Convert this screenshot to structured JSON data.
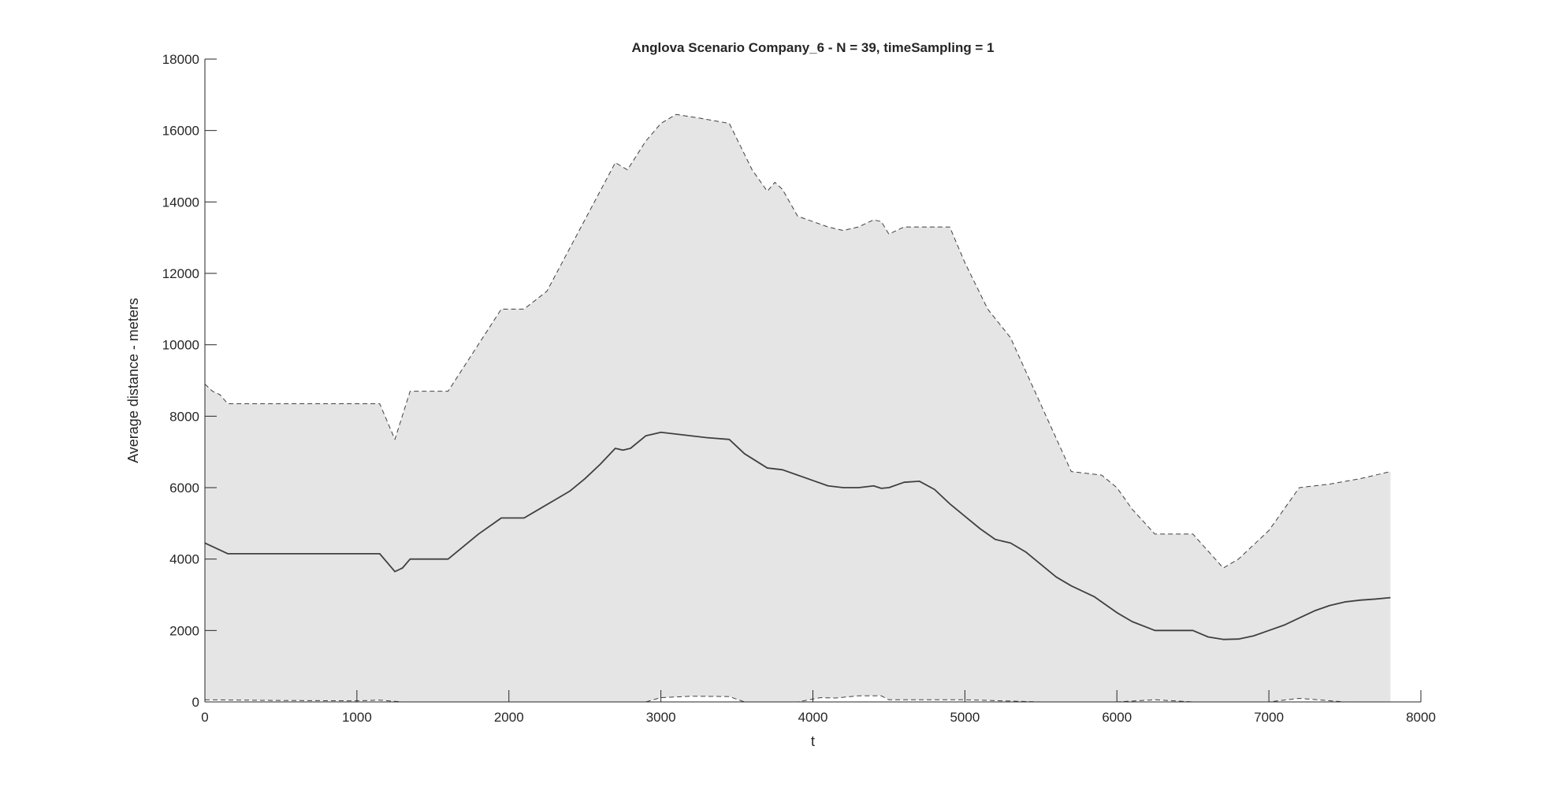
{
  "chart_data": {
    "type": "area",
    "title": "Anglova Scenario Company_6 - N = 39, timeSampling = 1",
    "xlabel": "t",
    "ylabel": "Average distance - meters",
    "xlim": [
      0,
      8000
    ],
    "ylim": [
      0,
      18000
    ],
    "xticks": [
      0,
      1000,
      2000,
      3000,
      4000,
      5000,
      6000,
      7000,
      8000
    ],
    "yticks": [
      0,
      2000,
      4000,
      6000,
      8000,
      10000,
      12000,
      14000,
      16000,
      18000
    ],
    "grid": false,
    "colors": {
      "fill": "#e5e5e5",
      "line": "#404040",
      "bound": "#404040",
      "axis": "#262626"
    },
    "series": [
      {
        "role": "upper-bound",
        "style": "dashed",
        "x": [
          0,
          50,
          100,
          150,
          1100,
          1150,
          1250,
          1350,
          1600,
          1950,
          2100,
          2250,
          2700,
          2780,
          2900,
          3000,
          3100,
          3250,
          3450,
          3600,
          3700,
          3750,
          3800,
          3900,
          4000,
          4100,
          4200,
          4300,
          4400,
          4450,
          4500,
          4600,
          4700,
          4800,
          4900,
          5000,
          5150,
          5300,
          5700,
          5900,
          6000,
          6100,
          6250,
          6500,
          6700,
          6800,
          7000,
          7200,
          7400,
          7600,
          7800
        ],
        "y": [
          8900,
          8700,
          8600,
          8350,
          8350,
          8350,
          7350,
          8700,
          8700,
          11000,
          11000,
          11500,
          15100,
          14900,
          15700,
          16200,
          16450,
          16350,
          16200,
          14900,
          14300,
          14550,
          14350,
          13600,
          13450,
          13300,
          13200,
          13300,
          13500,
          13450,
          13100,
          13300,
          13300,
          13300,
          13300,
          12300,
          11000,
          10200,
          6450,
          6350,
          6000,
          5400,
          4700,
          4700,
          3750,
          4000,
          4800,
          6000,
          6100,
          6250,
          6450
        ]
      },
      {
        "role": "mean",
        "style": "solid",
        "x": [
          0,
          50,
          100,
          150,
          1150,
          1200,
          1250,
          1300,
          1350,
          1600,
          1700,
          1800,
          1950,
          2100,
          2200,
          2300,
          2400,
          2500,
          2600,
          2700,
          2750,
          2800,
          2900,
          3000,
          3100,
          3200,
          3300,
          3450,
          3550,
          3700,
          3800,
          3900,
          4000,
          4100,
          4200,
          4300,
          4400,
          4450,
          4500,
          4600,
          4700,
          4800,
          4900,
          5000,
          5100,
          5200,
          5300,
          5400,
          5500,
          5600,
          5700,
          5850,
          6000,
          6100,
          6250,
          6500,
          6600,
          6700,
          6800,
          6900,
          7000,
          7100,
          7200,
          7300,
          7400,
          7500,
          7600,
          7700,
          7800
        ],
        "y": [
          4450,
          4350,
          4250,
          4150,
          4150,
          3900,
          3650,
          3750,
          4000,
          4000,
          4350,
          4700,
          5150,
          5150,
          5400,
          5650,
          5900,
          6250,
          6650,
          7100,
          7050,
          7100,
          7450,
          7550,
          7500,
          7450,
          7400,
          7350,
          6950,
          6550,
          6500,
          6350,
          6200,
          6050,
          6000,
          6000,
          6050,
          5980,
          6000,
          6150,
          6180,
          5950,
          5550,
          5200,
          4850,
          4550,
          4450,
          4200,
          3850,
          3500,
          3250,
          2950,
          2500,
          2250,
          2000,
          2000,
          1820,
          1750,
          1760,
          1850,
          2000,
          2150,
          2350,
          2550,
          2700,
          2800,
          2850,
          2880,
          2920
        ]
      },
      {
        "role": "lower-bound",
        "style": "dashed",
        "x": [
          0,
          500,
          1000,
          1150,
          1300,
          2000,
          2900,
          3000,
          3200,
          3450,
          3550,
          3900,
          4050,
          4150,
          4300,
          4450,
          4500,
          4700,
          5000,
          5500,
          6000,
          6250,
          6500,
          7000,
          7200,
          7500,
          7800
        ],
        "y": [
          60,
          40,
          30,
          50,
          0,
          0,
          0,
          120,
          160,
          150,
          0,
          0,
          120,
          110,
          170,
          170,
          60,
          60,
          60,
          0,
          0,
          60,
          0,
          0,
          100,
          0,
          0
        ]
      }
    ]
  }
}
